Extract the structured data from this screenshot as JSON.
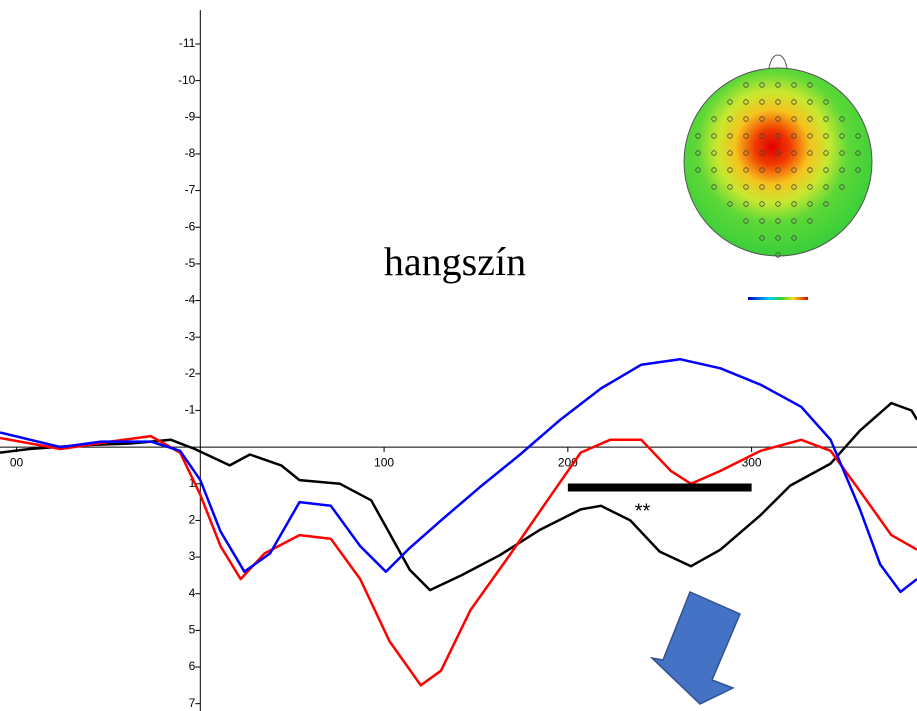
{
  "chart_data": {
    "type": "line",
    "annotation": "hangszín",
    "significance_label": "**",
    "significance_bar": {
      "x": [
        200,
        300
      ],
      "y": 1.1
    },
    "xlim": [
      -109,
      390
    ],
    "ylim": [
      -12.2,
      7.2
    ],
    "xticks": [
      {
        "value": -100,
        "label": "00"
      },
      100,
      200,
      300
    ],
    "yticks": [
      -11,
      -10,
      -9,
      -8,
      -7,
      -6,
      -5,
      -4,
      -3,
      -2,
      -1,
      1,
      2,
      3,
      4,
      5,
      6,
      7
    ],
    "series": [
      {
        "color": "#000000",
        "x": [
          -109,
          -93,
          -65,
          -38,
          -16,
          -3,
          16,
          27,
          44,
          54,
          76,
          93,
          114,
          125,
          142,
          163,
          185,
          207,
          218,
          234,
          250,
          267,
          283,
          305,
          321,
          343,
          359,
          376,
          387,
          390
        ],
        "values": [
          0.15,
          0.05,
          -0.05,
          -0.1,
          -0.2,
          0.05,
          0.5,
          0.2,
          0.5,
          0.9,
          1.0,
          1.45,
          3.35,
          3.9,
          3.5,
          2.95,
          2.25,
          1.7,
          1.6,
          2.0,
          2.85,
          3.25,
          2.8,
          1.85,
          1.05,
          0.45,
          -0.45,
          -1.2,
          -1.0,
          -0.75
        ]
      },
      {
        "color": "#ff0000",
        "x": [
          -109,
          -76,
          -49,
          -27,
          -11,
          0,
          11,
          22,
          35,
          54,
          71,
          87,
          103,
          120,
          131,
          147,
          169,
          191,
          207,
          223,
          240,
          256,
          267,
          283,
          305,
          327,
          343,
          359,
          376,
          390
        ],
        "values": [
          -0.25,
          0.05,
          -0.15,
          -0.3,
          0.15,
          1.3,
          2.7,
          3.6,
          2.9,
          2.4,
          2.5,
          3.6,
          5.3,
          6.5,
          6.1,
          4.45,
          2.9,
          1.3,
          0.15,
          -0.2,
          -0.2,
          0.65,
          1.0,
          0.65,
          0.1,
          -0.2,
          0.1,
          1.2,
          2.4,
          2.8
        ]
      },
      {
        "color": "#0000ff",
        "x": [
          -109,
          -76,
          -54,
          -27,
          -11,
          0,
          11,
          24,
          38,
          54,
          71,
          87,
          101,
          114,
          131,
          152,
          174,
          196,
          218,
          240,
          261,
          283,
          305,
          327,
          343,
          359,
          370,
          381,
          390
        ],
        "values": [
          -0.4,
          0,
          -0.15,
          -0.15,
          0.1,
          0.9,
          2.3,
          3.4,
          2.9,
          1.5,
          1.6,
          2.7,
          3.4,
          2.75,
          2.0,
          1.1,
          0.2,
          -0.75,
          -1.6,
          -2.25,
          -2.4,
          -2.15,
          -1.7,
          -1.1,
          -0.2,
          1.7,
          3.2,
          3.95,
          3.6
        ]
      }
    ]
  }
}
